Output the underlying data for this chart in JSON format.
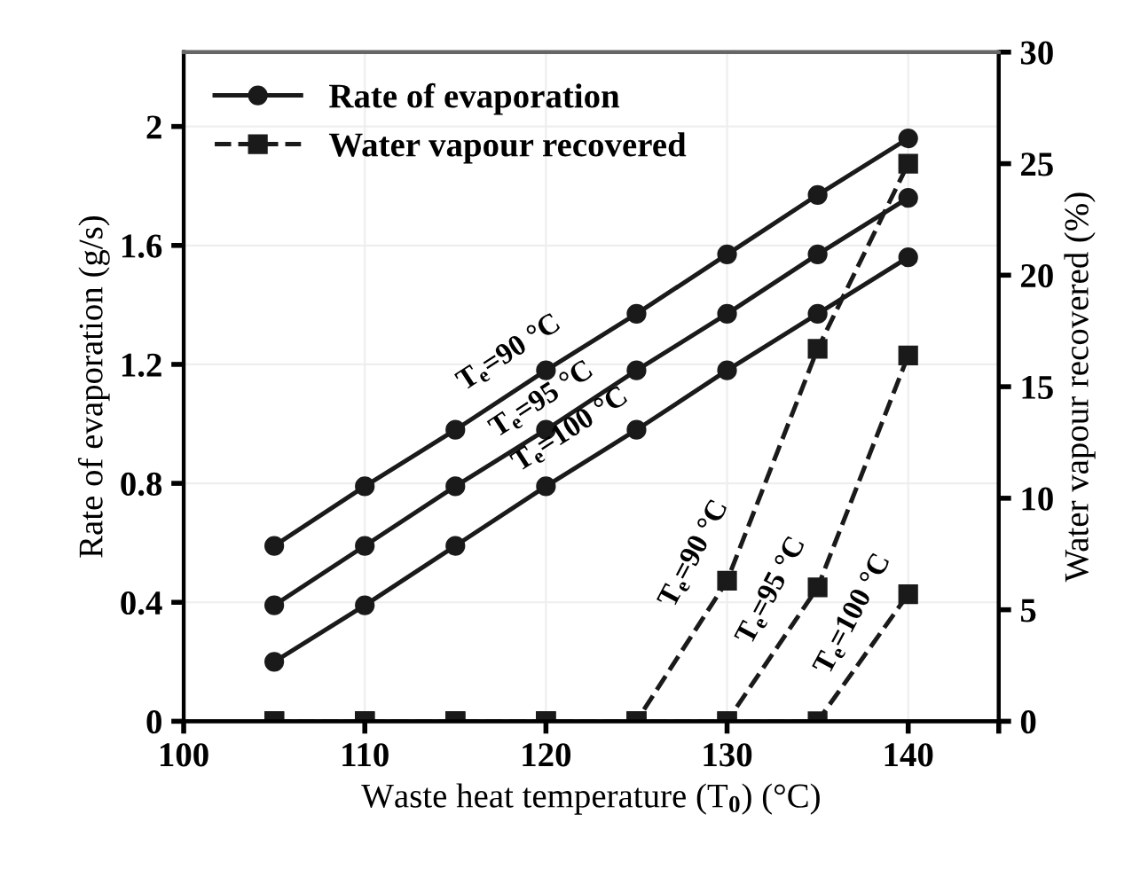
{
  "chart_data": {
    "type": "line",
    "xlabel": "Waste heat temperature (T$_{0}$) (°C)",
    "ylabel": "Rate of evaporation (g/s)",
    "y2label": "Water vapour recovered (%)",
    "x": [
      105,
      110,
      115,
      120,
      125,
      130,
      135,
      140
    ],
    "xlim": [
      100,
      145
    ],
    "xticks": [
      100,
      110,
      120,
      130,
      140,
      {
        "value": 145,
        "label": null
      }
    ],
    "ylim": [
      0,
      2.25
    ],
    "yticks": [
      0,
      0.4,
      0.8,
      1.2,
      1.6,
      2
    ],
    "y2lim": [
      0,
      30
    ],
    "y2ticks": [
      0,
      5,
      10,
      15,
      20,
      25,
      30
    ],
    "grid": true,
    "legend": "top left",
    "series": [
      {
        "name": "Rate of evaporation",
        "color": "#1a1a1a",
        "marker": "circle",
        "line_style": "solid",
        "values": [
          0.59,
          0.79,
          0.98,
          1.18,
          1.37,
          1.57,
          1.77,
          1.96
        ]
      },
      {
        "color": "#1a1a1a",
        "marker": "circle",
        "line_style": "solid",
        "values": [
          0.39,
          0.59,
          0.79,
          0.98,
          1.18,
          1.37,
          1.57,
          1.76
        ]
      },
      {
        "color": "#1a1a1a",
        "marker": "circle",
        "line_style": "solid",
        "values": [
          0.2,
          0.39,
          0.59,
          0.79,
          0.98,
          1.18,
          1.37,
          1.56
        ]
      },
      {
        "name": "Water vapour recovered",
        "axis": "y2",
        "color": "#1a1a1a",
        "marker": "square",
        "line_style": "dashed",
        "values": [
          0,
          0,
          0,
          0,
          0,
          6.3,
          16.7,
          25
        ]
      },
      {
        "axis": "y2",
        "color": "#1a1a1a",
        "marker": "square",
        "line_style": "dashed",
        "values": [
          0,
          0,
          0,
          0,
          0,
          0,
          6,
          16.4
        ]
      },
      {
        "axis": "y2",
        "color": "#1a1a1a",
        "marker": "square",
        "line_style": "dashed",
        "values": [
          0,
          0,
          0,
          0,
          0,
          0,
          0,
          5.7
        ]
      }
    ],
    "annotations": [
      "T$_{e}$=90 °C",
      "T$_{e}$=95 °C",
      "T$_{e}$=100 °C",
      "T$_{e}$=90 °C",
      "T$_{e}$=95 °C",
      "T$_{e}$=100 °C"
    ]
  }
}
